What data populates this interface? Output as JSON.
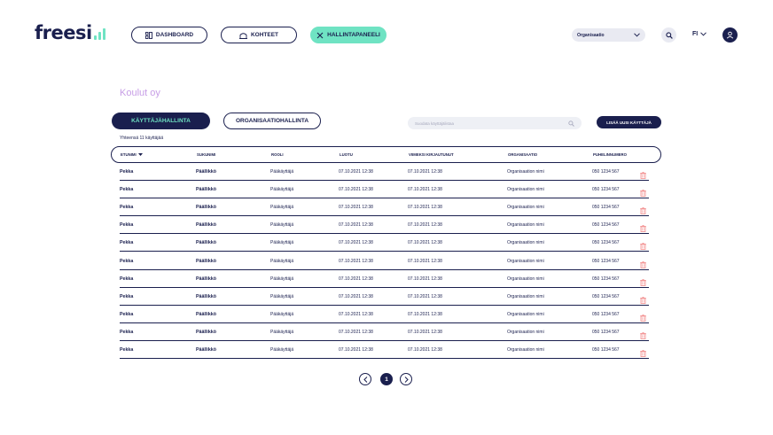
{
  "colors": {
    "navy": "#1a1f4e",
    "mint": "#6fe3c3",
    "lilac": "#c79ee6",
    "danger": "#f28b8b",
    "grey": "#e9eaf2"
  },
  "header": {
    "logo": "freesi",
    "nav": [
      {
        "label": "DASHBOARD",
        "icon": "dashboard-icon"
      },
      {
        "label": "KOHTEET",
        "icon": "building-icon"
      },
      {
        "label": "HALLINTAPANEELI",
        "icon": "tools-icon",
        "active": true
      }
    ],
    "organization_select": "Organisaatio",
    "search_icon": "search-icon",
    "language": "FI",
    "avatar_icon": "user-icon"
  },
  "page": {
    "title": "Koulut oy",
    "tabs": {
      "users": "KÄYTTÄJÄHALLINTA",
      "organizations": "ORGANISAATIOHALLINTA"
    },
    "search_placeholder": "Suodata käyttäjälistaa",
    "add_user": "LISÄÄ UUSI KÄYTTÄJÄ",
    "showing": "Yhteensä 11 käyttäjää"
  },
  "table": {
    "columns": [
      "ETUNIMI",
      "SUKUNIMI",
      "ROOLI",
      "LUOTU",
      "VIIMEKSI KIRJAUTUNUT",
      "ORGANISAATIO",
      "PUHELINNUMERO"
    ],
    "rows": [
      [
        "Pekka",
        "Päällikkö",
        "Pääkäyttäjä",
        "07.10.2021 12:38",
        "07.10.2021 12:38",
        "Organisaation nimi",
        "050 1234 567"
      ],
      [
        "Pekka",
        "Päällikkö",
        "Pääkäyttäjä",
        "07.10.2021 12:38",
        "07.10.2021 12:38",
        "Organisaation nimi",
        "050 1234 567"
      ],
      [
        "Pekka",
        "Päällikkö",
        "Pääkäyttäjä",
        "07.10.2021 12:38",
        "07.10.2021 12:38",
        "Organisaation nimi",
        "050 1234 567"
      ],
      [
        "Pekka",
        "Päällikkö",
        "Pääkäyttäjä",
        "07.10.2021 12:38",
        "07.10.2021 12:38",
        "Organisaation nimi",
        "050 1234 567"
      ],
      [
        "Pekka",
        "Päällikkö",
        "Pääkäyttäjä",
        "07.10.2021 12:38",
        "07.10.2021 12:38",
        "Organisaation nimi",
        "050 1234 567"
      ],
      [
        "Pekka",
        "Päällikkö",
        "Pääkäyttäjä",
        "07.10.2021 12:38",
        "07.10.2021 12:38",
        "Organisaation nimi",
        "050 1234 567"
      ],
      [
        "Pekka",
        "Päällikkö",
        "Pääkäyttäjä",
        "07.10.2021 12:38",
        "07.10.2021 12:38",
        "Organisaation nimi",
        "050 1234 567"
      ],
      [
        "Pekka",
        "Päällikkö",
        "Pääkäyttäjä",
        "07.10.2021 12:38",
        "07.10.2021 12:38",
        "Organisaation nimi",
        "050 1234 567"
      ],
      [
        "Pekka",
        "Päällikkö",
        "Pääkäyttäjä",
        "07.10.2021 12:38",
        "07.10.2021 12:38",
        "Organisaation nimi",
        "050 1234 567"
      ],
      [
        "Pekka",
        "Päällikkö",
        "Pääkäyttäjä",
        "07.10.2021 12:38",
        "07.10.2021 12:38",
        "Organisaation nimi",
        "050 1234 567"
      ],
      [
        "Pekka",
        "Päällikkö",
        "Pääkäyttäjä",
        "07.10.2021 12:38",
        "07.10.2021 12:38",
        "Organisaation nimi",
        "050 1234 567"
      ]
    ],
    "row_action_icon": "trash-icon"
  },
  "pagination": {
    "current": "1",
    "prev_icon": "chevron-left-icon",
    "next_icon": "chevron-right-icon"
  }
}
